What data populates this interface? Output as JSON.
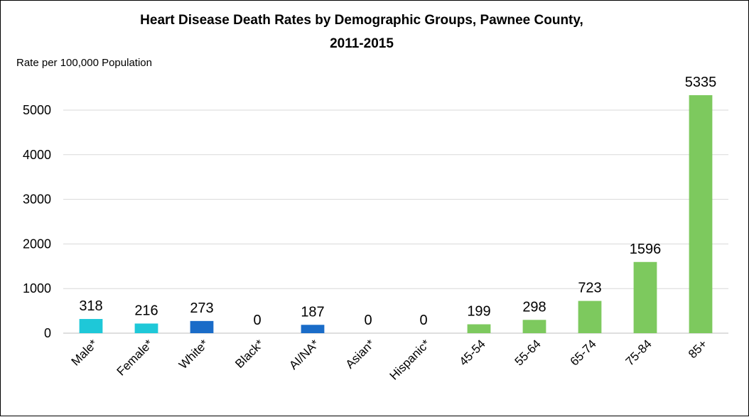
{
  "chart_data": {
    "type": "bar",
    "title": "Heart Disease Death Rates by Demographic Groups, Pawnee County, 2011-2015",
    "title_lines": [
      "Heart Disease Death Rates by Demographic Groups, Pawnee County,",
      "2011-2015"
    ],
    "ylabel": "Rate per 100,000 Population",
    "xlabel": "",
    "ylim": [
      0,
      5000
    ],
    "yticks": [
      0,
      1000,
      2000,
      3000,
      4000,
      5000
    ],
    "grid": true,
    "legend": "none",
    "categories": [
      "Male*",
      "Female*",
      "White*",
      "Black*",
      "AI/NA*",
      "Asian*",
      "Hispanic*",
      "45-54",
      "55-64",
      "65-74",
      "75-84",
      "85+"
    ],
    "values": [
      318,
      216,
      273,
      0,
      187,
      0,
      0,
      199,
      298,
      723,
      1596,
      5335
    ],
    "colors": [
      "#1ec8d8",
      "#1ec8d8",
      "#1a6cc8",
      "#1a6cc8",
      "#1a6cc8",
      "#1a6cc8",
      "#1a6cc8",
      "#7dc95e",
      "#7dc95e",
      "#7dc95e",
      "#7dc95e",
      "#7dc95e"
    ]
  }
}
